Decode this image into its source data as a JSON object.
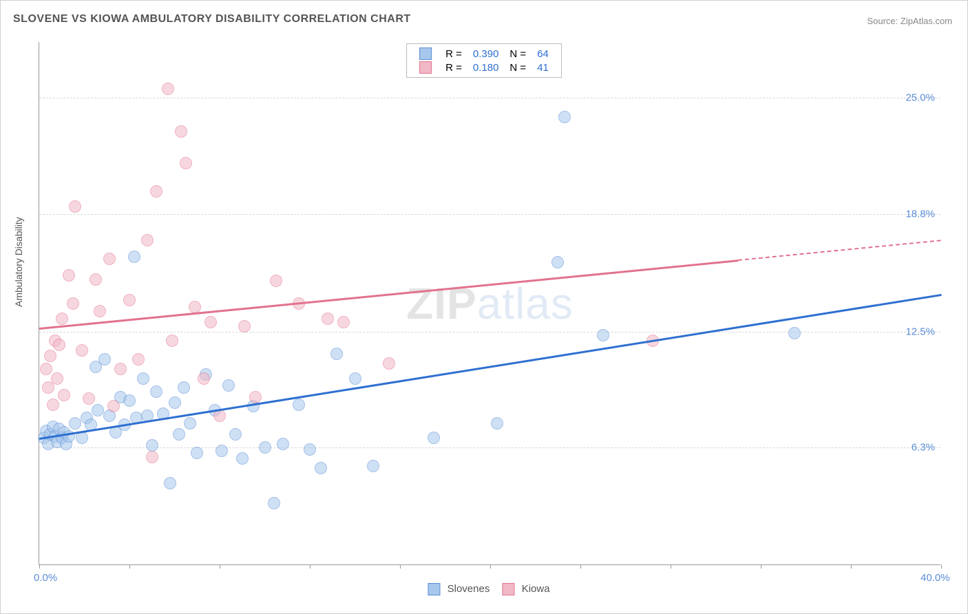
{
  "title": "SLOVENE VS KIOWA AMBULATORY DISABILITY CORRELATION CHART",
  "source": "Source: ZipAtlas.com",
  "ylabel": "Ambulatory Disability",
  "watermark": {
    "zip": "ZIP",
    "atlas": "atlas"
  },
  "chart": {
    "type": "scatter",
    "xlim": [
      0,
      40
    ],
    "ylim": [
      0,
      28
    ],
    "x_ticks": [
      0,
      4,
      8,
      12,
      16,
      20,
      24,
      28,
      32,
      36,
      40
    ],
    "x_tick_labels_show": {
      "0": "0.0%",
      "40": "40.0%"
    },
    "y_gridlines": [
      6.3,
      12.5,
      18.8,
      25.0
    ],
    "y_tick_labels": [
      "6.3%",
      "12.5%",
      "18.8%",
      "25.0%"
    ],
    "background_color": "#ffffff",
    "grid_color": "#d8d8d8",
    "axis_color": "#999999",
    "point_radius": 9,
    "point_opacity": 0.55,
    "series": [
      {
        "name": "Slovenes",
        "color_fill": "#a7c7ec",
        "color_stroke": "#5b8dd6",
        "R": "0.390",
        "N": "64",
        "trend": {
          "x1": 0,
          "y1": 6.8,
          "x2": 40,
          "y2": 14.5,
          "color": "#2e6fd0",
          "width": 2.5,
          "solid_until_x": 40
        },
        "points": [
          [
            0.2,
            6.8
          ],
          [
            0.3,
            7.2
          ],
          [
            0.4,
            6.5
          ],
          [
            0.5,
            7.0
          ],
          [
            0.6,
            7.4
          ],
          [
            0.7,
            6.9
          ],
          [
            0.8,
            6.6
          ],
          [
            0.9,
            7.3
          ],
          [
            1.0,
            6.8
          ],
          [
            1.1,
            7.1
          ],
          [
            1.2,
            6.5
          ],
          [
            1.3,
            6.9
          ],
          [
            1.6,
            7.6
          ],
          [
            1.9,
            6.8
          ],
          [
            2.1,
            7.9
          ],
          [
            2.3,
            7.5
          ],
          [
            2.5,
            10.6
          ],
          [
            2.6,
            8.3
          ],
          [
            2.9,
            11.0
          ],
          [
            3.1,
            8.0
          ],
          [
            3.4,
            7.1
          ],
          [
            3.6,
            9.0
          ],
          [
            3.8,
            7.5
          ],
          [
            4.0,
            8.8
          ],
          [
            4.2,
            16.5
          ],
          [
            4.3,
            7.9
          ],
          [
            4.6,
            10.0
          ],
          [
            4.8,
            8.0
          ],
          [
            5.0,
            6.4
          ],
          [
            5.2,
            9.3
          ],
          [
            5.5,
            8.1
          ],
          [
            5.8,
            4.4
          ],
          [
            6.0,
            8.7
          ],
          [
            6.2,
            7.0
          ],
          [
            6.4,
            9.5
          ],
          [
            6.7,
            7.6
          ],
          [
            7.0,
            6.0
          ],
          [
            7.4,
            10.2
          ],
          [
            7.8,
            8.3
          ],
          [
            8.1,
            6.1
          ],
          [
            8.4,
            9.6
          ],
          [
            8.7,
            7.0
          ],
          [
            9.0,
            5.7
          ],
          [
            9.5,
            8.5
          ],
          [
            10.0,
            6.3
          ],
          [
            10.4,
            3.3
          ],
          [
            10.8,
            6.5
          ],
          [
            11.5,
            8.6
          ],
          [
            12.0,
            6.2
          ],
          [
            12.5,
            5.2
          ],
          [
            13.2,
            11.3
          ],
          [
            14.0,
            10.0
          ],
          [
            14.8,
            5.3
          ],
          [
            17.5,
            6.8
          ],
          [
            20.3,
            7.6
          ],
          [
            23.0,
            16.2
          ],
          [
            23.3,
            24.0
          ],
          [
            25.0,
            12.3
          ],
          [
            33.5,
            12.4
          ]
        ]
      },
      {
        "name": "Kiowa",
        "color_fill": "#f1b8c5",
        "color_stroke": "#e2728e",
        "R": "0.180",
        "N": "41",
        "trend": {
          "x1": 0,
          "y1": 12.7,
          "x2": 40,
          "y2": 17.4,
          "color": "#e2728e",
          "width": 2.5,
          "solid_until_x": 31
        },
        "points": [
          [
            0.3,
            10.5
          ],
          [
            0.4,
            9.5
          ],
          [
            0.5,
            11.2
          ],
          [
            0.6,
            8.6
          ],
          [
            0.7,
            12.0
          ],
          [
            0.8,
            10.0
          ],
          [
            0.9,
            11.8
          ],
          [
            1.0,
            13.2
          ],
          [
            1.1,
            9.1
          ],
          [
            1.3,
            15.5
          ],
          [
            1.5,
            14.0
          ],
          [
            1.6,
            19.2
          ],
          [
            1.9,
            11.5
          ],
          [
            2.2,
            8.9
          ],
          [
            2.5,
            15.3
          ],
          [
            2.7,
            13.6
          ],
          [
            3.1,
            16.4
          ],
          [
            3.3,
            8.5
          ],
          [
            3.6,
            10.5
          ],
          [
            4.0,
            14.2
          ],
          [
            4.4,
            11.0
          ],
          [
            4.8,
            17.4
          ],
          [
            5.0,
            5.8
          ],
          [
            5.2,
            20.0
          ],
          [
            5.7,
            25.5
          ],
          [
            5.9,
            12.0
          ],
          [
            6.3,
            23.2
          ],
          [
            6.5,
            21.5
          ],
          [
            6.9,
            13.8
          ],
          [
            7.3,
            10.0
          ],
          [
            7.6,
            13.0
          ],
          [
            8.0,
            8.0
          ],
          [
            9.1,
            12.8
          ],
          [
            9.6,
            9.0
          ],
          [
            10.5,
            15.2
          ],
          [
            11.5,
            14.0
          ],
          [
            12.8,
            13.2
          ],
          [
            13.5,
            13.0
          ],
          [
            15.5,
            10.8
          ],
          [
            27.2,
            12.0
          ]
        ]
      }
    ]
  },
  "legend_top_labels": {
    "R": "R =",
    "N": "N ="
  },
  "legend_bottom": [
    {
      "label": "Slovenes",
      "fill": "#a7c7ec",
      "stroke": "#5b8dd6"
    },
    {
      "label": "Kiowa",
      "fill": "#f1b8c5",
      "stroke": "#e2728e"
    }
  ]
}
